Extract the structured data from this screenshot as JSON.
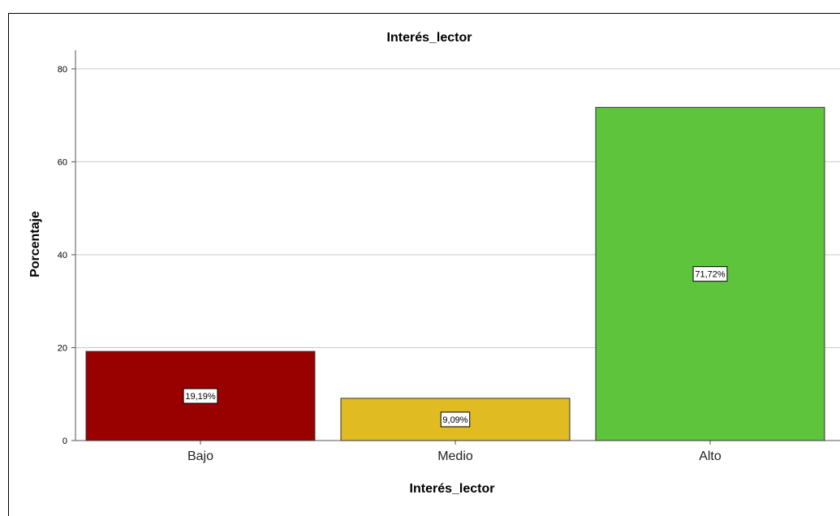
{
  "chart_data": {
    "type": "bar",
    "title": "Interés_lector",
    "xlabel": "Interés_lector",
    "ylabel": "Porcentaje",
    "categories": [
      "Bajo",
      "Medio",
      "Alto"
    ],
    "values": [
      19.19,
      9.09,
      71.72
    ],
    "data_labels": [
      "19,19%",
      "9,09%",
      "71,72%"
    ],
    "colors": [
      "#990000",
      "#E1BB22",
      "#5EC43C"
    ],
    "ylim": [
      0,
      80
    ],
    "yticks": [
      0,
      20,
      40,
      60,
      80
    ],
    "grid": true,
    "legend": "none"
  }
}
